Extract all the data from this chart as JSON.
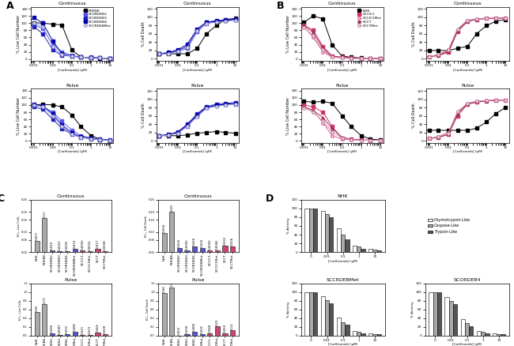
{
  "x_carfilzomib": [
    0.0005,
    0.001,
    0.003,
    0.01,
    0.03,
    0.1,
    0.3,
    1,
    3,
    10
  ],
  "x_ticks": [
    0.001,
    0.01,
    0.1,
    1,
    10
  ],
  "x_tick_labels": [
    "0.001",
    "0.01",
    "0.1",
    "1",
    "10"
  ],
  "A_cont_live": {
    "RDEBK": [
      100,
      101,
      100,
      97,
      95,
      25,
      5,
      3,
      2,
      1
    ],
    "SCORDEB2": [
      100,
      95,
      85,
      40,
      20,
      10,
      5,
      5,
      3,
      2
    ],
    "SCORDEB3": [
      100,
      90,
      70,
      25,
      10,
      8,
      5,
      4,
      3,
      2
    ],
    "SCORDEB4": [
      100,
      115,
      100,
      50,
      15,
      8,
      5,
      4,
      3,
      2
    ],
    "SCCRDEBMet": [
      100,
      100,
      90,
      35,
      12,
      8,
      5,
      4,
      3,
      2
    ]
  },
  "A_cont_death": {
    "RDEBK": [
      12,
      12,
      12,
      12,
      12,
      25,
      60,
      80,
      95,
      97
    ],
    "SCORDEB2": [
      12,
      12,
      14,
      18,
      25,
      65,
      85,
      90,
      92,
      95
    ],
    "SCORDEB3": [
      12,
      12,
      14,
      20,
      30,
      70,
      88,
      92,
      94,
      96
    ],
    "SCORDEB4": [
      12,
      12,
      15,
      22,
      35,
      72,
      88,
      90,
      93,
      95
    ],
    "SCCRDEBMet": [
      12,
      12,
      12,
      18,
      28,
      68,
      85,
      88,
      90,
      93
    ]
  },
  "A_pulse_live": {
    "RDEBK": [
      100,
      100,
      102,
      100,
      95,
      72,
      40,
      15,
      5,
      2
    ],
    "SCORDEB2": [
      100,
      100,
      95,
      80,
      55,
      30,
      15,
      8,
      5,
      3
    ],
    "SCORDEB3": [
      100,
      95,
      88,
      60,
      35,
      18,
      10,
      6,
      4,
      2
    ],
    "SCORDEB4": [
      100,
      102,
      98,
      75,
      45,
      22,
      12,
      7,
      4,
      2
    ],
    "SCCRDEBMet": [
      100,
      100,
      95,
      70,
      40,
      18,
      10,
      6,
      4,
      2
    ]
  },
  "A_pulse_death": {
    "RDEBK": [
      12,
      12,
      12,
      12,
      14,
      18,
      20,
      22,
      20,
      18
    ],
    "SCORDEB2": [
      12,
      12,
      14,
      20,
      35,
      60,
      80,
      85,
      88,
      88
    ],
    "SCORDEB3": [
      12,
      12,
      14,
      22,
      40,
      65,
      82,
      88,
      90,
      92
    ],
    "SCORDEB4": [
      12,
      12,
      15,
      20,
      38,
      62,
      80,
      85,
      88,
      90
    ],
    "SCCRDEBMet": [
      12,
      12,
      13,
      18,
      35,
      58,
      78,
      83,
      86,
      88
    ]
  },
  "B_cont_live": {
    "NHK": [
      100,
      102,
      120,
      112,
      40,
      8,
      5,
      3,
      2,
      2
    ],
    "SCCIC1": [
      100,
      95,
      80,
      35,
      8,
      5,
      3,
      2,
      2,
      2
    ],
    "SCCIC1Met": [
      100,
      90,
      60,
      20,
      5,
      3,
      2,
      2,
      2,
      2
    ],
    "SCCT": [
      100,
      92,
      75,
      30,
      8,
      5,
      3,
      2,
      2,
      2
    ],
    "SCCTMet": [
      100,
      88,
      65,
      25,
      6,
      4,
      2,
      2,
      2,
      2
    ]
  },
  "B_cont_death": {
    "NHK": [
      20,
      20,
      20,
      20,
      25,
      30,
      60,
      80,
      90,
      95
    ],
    "SCCIC1": [
      5,
      5,
      8,
      15,
      65,
      90,
      95,
      97,
      98,
      98
    ],
    "SCCIC1Met": [
      5,
      5,
      10,
      20,
      70,
      92,
      96,
      98,
      98,
      98
    ],
    "SCCT": [
      5,
      5,
      8,
      18,
      68,
      90,
      95,
      97,
      98,
      98
    ],
    "SCCTMet": [
      5,
      5,
      10,
      22,
      72,
      93,
      96,
      98,
      98,
      98
    ]
  },
  "B_pulse_live": {
    "NHK": [
      100,
      110,
      108,
      110,
      105,
      70,
      40,
      15,
      5,
      3
    ],
    "SCCIC1": [
      100,
      100,
      95,
      80,
      40,
      8,
      5,
      3,
      2,
      2
    ],
    "SCCIC1Met": [
      100,
      95,
      85,
      50,
      15,
      5,
      3,
      2,
      2,
      2
    ],
    "SCCT": [
      100,
      95,
      85,
      65,
      35,
      10,
      5,
      3,
      2,
      2
    ],
    "SCCTMet": [
      100,
      92,
      80,
      55,
      25,
      8,
      4,
      2,
      2,
      2
    ]
  },
  "B_pulse_death": {
    "NHK": [
      25,
      25,
      25,
      25,
      25,
      25,
      30,
      45,
      65,
      80
    ],
    "SCCIC1": [
      5,
      5,
      8,
      15,
      60,
      88,
      93,
      96,
      97,
      98
    ],
    "SCCIC1Met": [
      5,
      5,
      10,
      20,
      68,
      90,
      95,
      97,
      98,
      98
    ],
    "SCCT": [
      5,
      5,
      8,
      15,
      65,
      88,
      93,
      96,
      97,
      98
    ],
    "SCCTMet": [
      5,
      5,
      10,
      18,
      70,
      90,
      95,
      97,
      98,
      98
    ]
  },
  "A_legend": [
    "RDEBK",
    "SCORDEB2",
    "SCORDEB3",
    "SCORDEB4",
    "SCCRDEBMet"
  ],
  "B_legend": [
    "NHK",
    "SCCIC1",
    "SCCIC1Met",
    "SCCT",
    "SCCTMet"
  ],
  "A_colors": [
    "#000000",
    "#5555ee",
    "#2222bb",
    "#0000aa",
    "#9999cc"
  ],
  "B_colors": [
    "#000000",
    "#cc3366",
    "#dd6699",
    "#993355",
    "#cc88aa"
  ],
  "A_markers": [
    "s",
    "s",
    "s",
    "s",
    "o"
  ],
  "B_markers": [
    "s",
    "s",
    "o",
    "^",
    "o"
  ],
  "A_fills_solid": [
    true,
    true,
    true,
    true,
    false
  ],
  "B_fills_solid": [
    true,
    true,
    false,
    true,
    false
  ],
  "C_categories": [
    "NHK",
    "RDEBK",
    "SCORDEB2",
    "SCORDEB3",
    "SCORDEB4",
    "SCCRDEBMet",
    "SCCIC1",
    "SCCIC1Met",
    "SCCT",
    "SCCTMet"
  ],
  "C_cont_live_vals": [
    0.057,
    0.17,
    0.01,
    0.0052,
    0.0025,
    0.014,
    0.0092,
    0.0032,
    0.017,
    0.0038
  ],
  "C_cont_live_labels": [
    "0.057",
    "0.17",
    "0.010",
    "0.0052",
    "0.0025",
    "0.014",
    "0.0092",
    "0.0032",
    "0.017",
    "0.0038"
  ],
  "C_cont_death_vals": [
    0.094,
    0.2,
    0.02,
    0.0092,
    0.026,
    0.02,
    0.0092,
    0.0065,
    0.032,
    0.026
  ],
  "C_cont_death_labels": [
    "0.094",
    "0.20",
    "0.020",
    "0.0092",
    "0.026",
    "0.020",
    "0.0092",
    "0.0065",
    "0.032",
    "0.026"
  ],
  "C_pulse_live_vals": [
    0.55,
    0.73,
    0.046,
    0.0087,
    0.032,
    0.085,
    0.021,
    0.023,
    0.065,
    0.028
  ],
  "C_pulse_live_labels": [
    "0.55",
    "0.73",
    "0.046",
    "0.0087",
    "0.032",
    "0.085",
    "0.021",
    "0.023",
    "0.065",
    "0.028"
  ],
  "C_pulse_death_vals": [
    0.98,
    1.1,
    0.003,
    0.03,
    0.08,
    0.035,
    0.048,
    0.21,
    0.05,
    0.12
  ],
  "C_pulse_death_labels": [
    "0.98",
    "1.1",
    "0.003",
    "0.030",
    "0.080",
    "0.035",
    "0.048",
    "0.21",
    "0.050",
    "0.12"
  ],
  "C_bar_colors": [
    "#aaaaaa",
    "#aaaaaa",
    "#5555cc",
    "#5555cc",
    "#5555cc",
    "#5555cc",
    "#cc4477",
    "#cc4477",
    "#cc4477",
    "#cc4477"
  ],
  "D_x_labels": [
    "0",
    "0.01",
    "0.1",
    "1",
    "10"
  ],
  "D_NHK_chymo": [
    100,
    95,
    55,
    15,
    8
  ],
  "D_NHK_casp": [
    100,
    88,
    40,
    12,
    6
  ],
  "D_NHK_tryp": [
    100,
    80,
    30,
    8,
    4
  ],
  "D_SCCRDEBMet_chymo": [
    100,
    90,
    42,
    10,
    5
  ],
  "D_SCCRDEBMet_casp": [
    100,
    82,
    30,
    8,
    4
  ],
  "D_SCCRDEBMet_tryp": [
    100,
    75,
    25,
    6,
    3
  ],
  "D_SCORDEB4_chymo": [
    100,
    88,
    38,
    10,
    5
  ],
  "D_SCORDEB4_casp": [
    100,
    80,
    28,
    8,
    4
  ],
  "D_SCORDEB4_tryp": [
    100,
    72,
    22,
    5,
    3
  ],
  "D_bar_colors": [
    "#ffffff",
    "#aaaaaa",
    "#555555"
  ],
  "D_legend": [
    "Chymotrypsin-Like",
    "Caspase-Like",
    "Trypsin-Like"
  ]
}
